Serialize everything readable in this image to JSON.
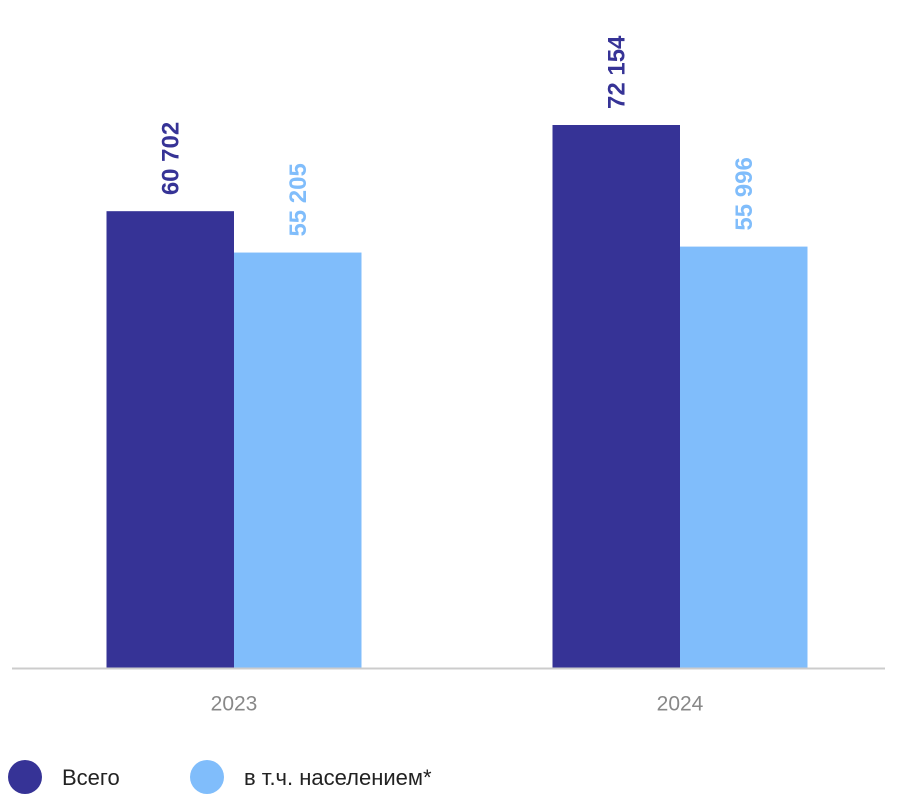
{
  "chart_data": {
    "type": "bar",
    "categories": [
      "2023",
      "2024"
    ],
    "series": [
      {
        "name": "Всего",
        "color": "#363396",
        "values": [
          60702,
          72154
        ],
        "value_labels": [
          "60 702",
          "72 154"
        ]
      },
      {
        "name": "в т.ч. населением*",
        "color": "#80bdfb",
        "values": [
          55205,
          55996
        ],
        "value_labels": [
          "55 205",
          "55 996"
        ]
      }
    ]
  }
}
